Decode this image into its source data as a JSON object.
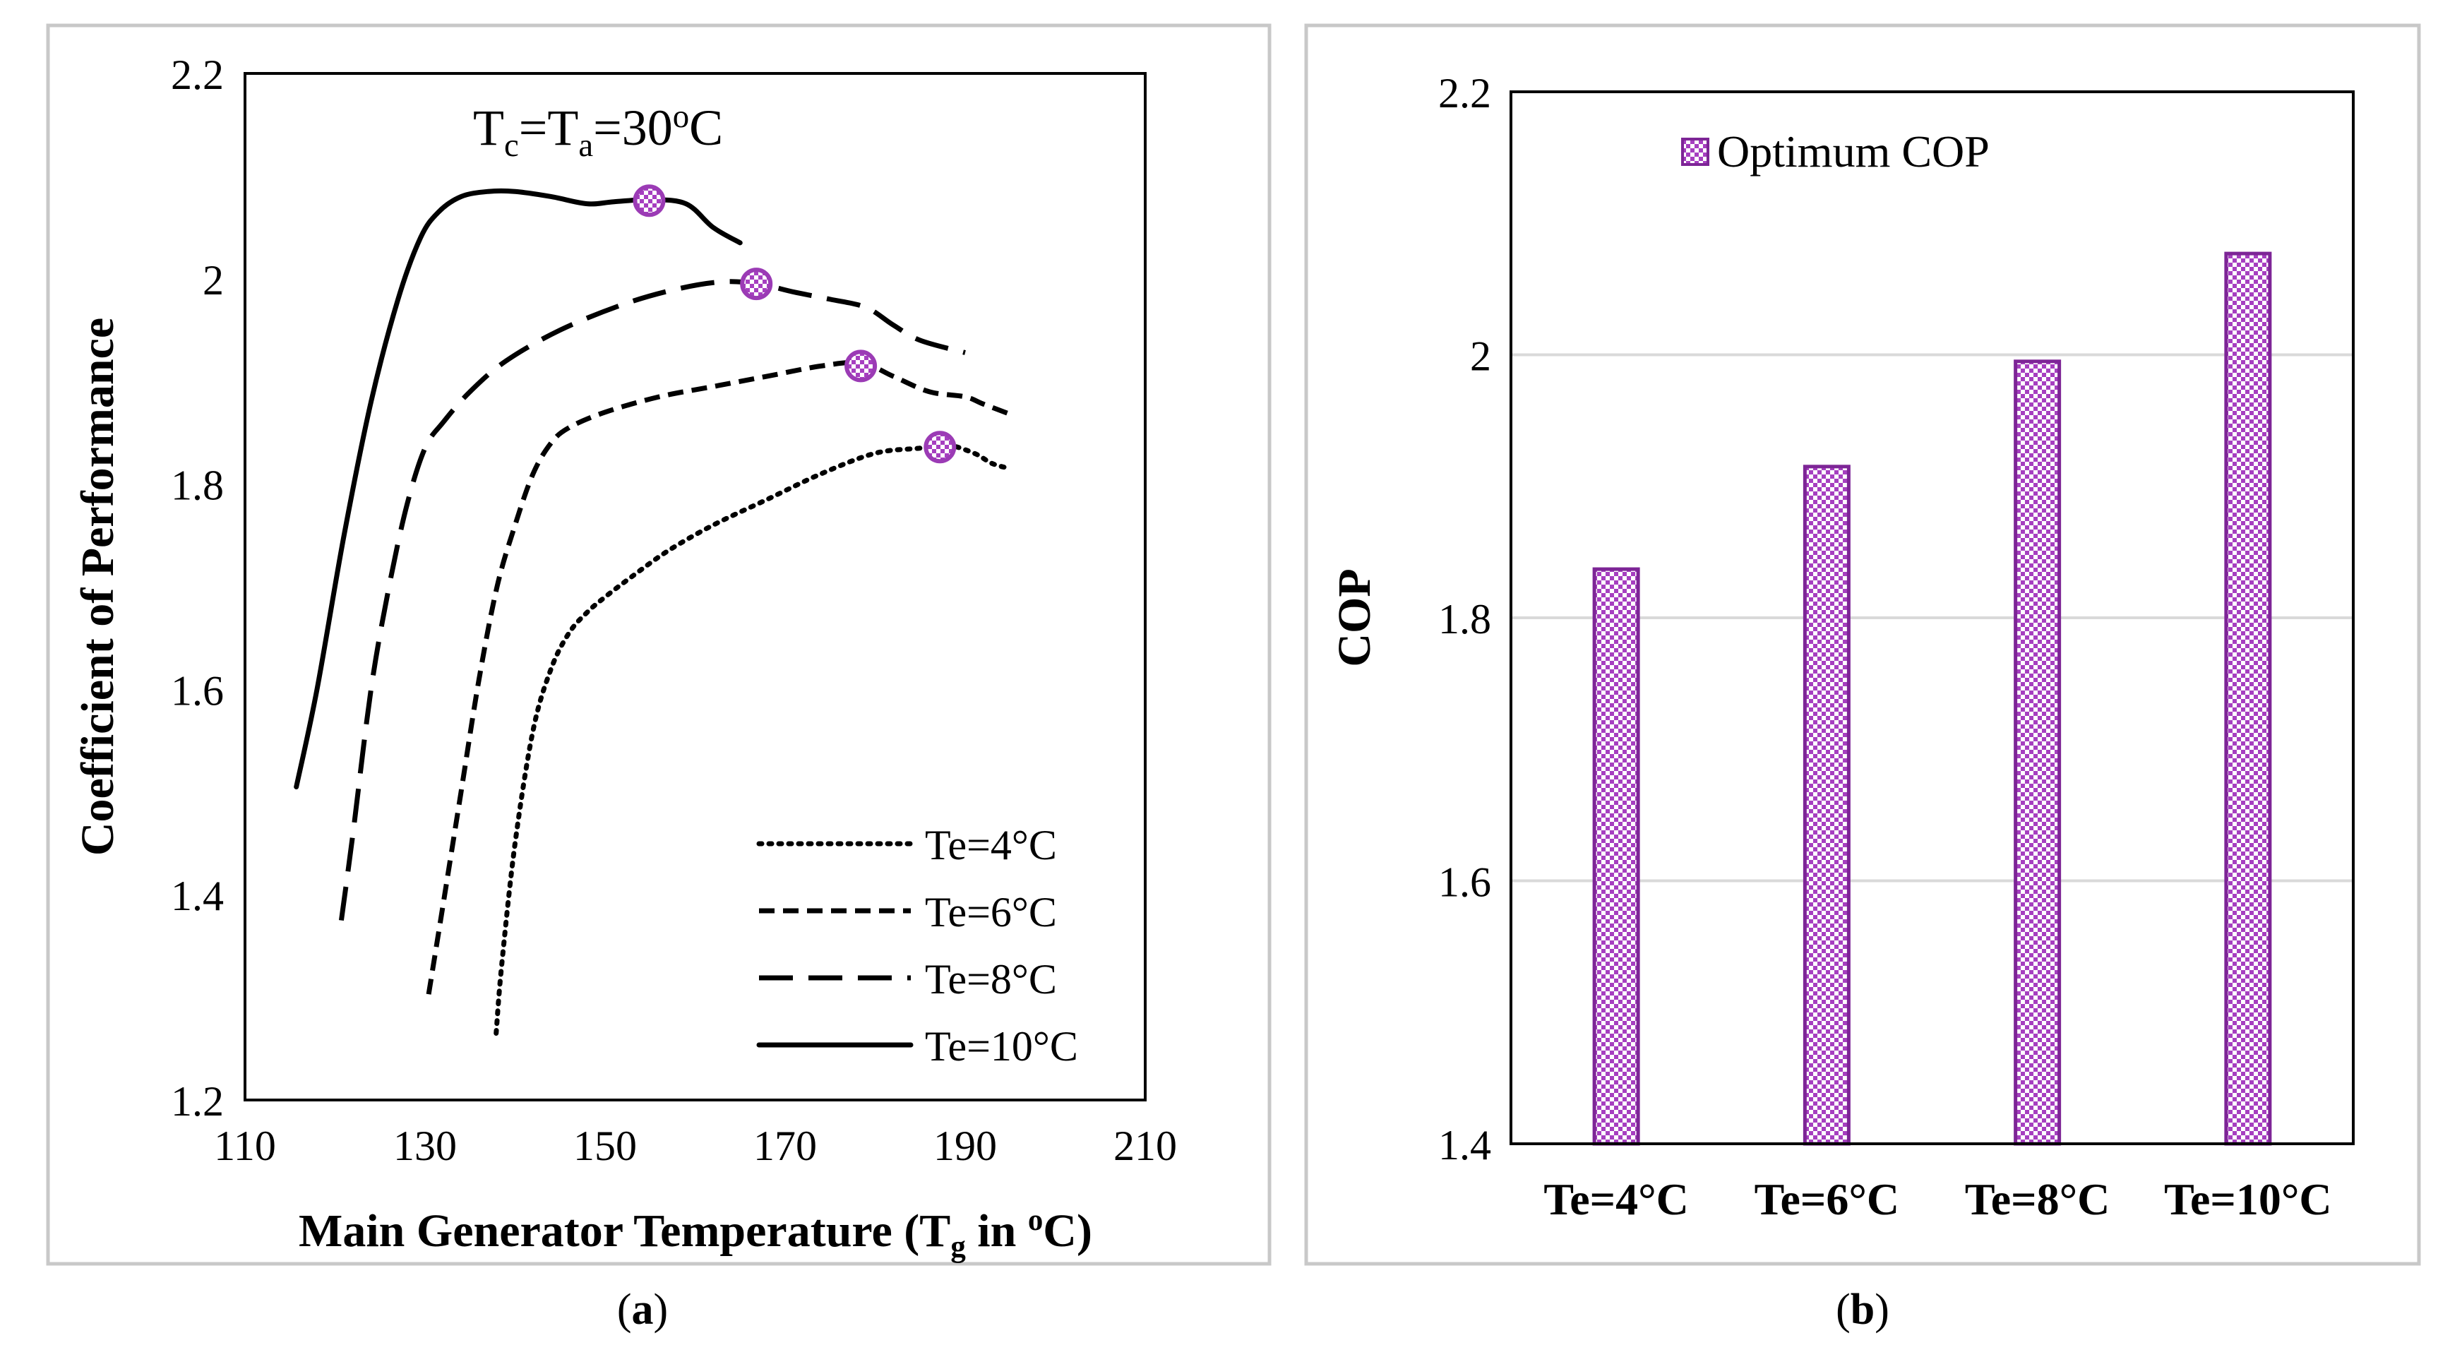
{
  "panels": [
    {
      "caption_open": "(",
      "caption_letter": "a",
      "caption_close": ")"
    },
    {
      "caption_open": "(",
      "caption_letter": "b",
      "caption_close": ")"
    }
  ],
  "colors": {
    "marker": "#9b3bb5",
    "bar_fill": "#a63fc0",
    "bar_stroke": "#7d2596",
    "frame": "#c8c8c8",
    "grid": "#d9d9d9"
  },
  "chart_data": [
    {
      "type": "line",
      "annotation": "Tc=Ta=30oC",
      "ylabel": "Coefficient of Performance",
      "xlabel": "Main Generator Temperature (Tg in oC)",
      "xlim": [
        110,
        210
      ],
      "ylim": [
        1.2,
        2.2
      ],
      "xticks": [
        110,
        130,
        150,
        170,
        190,
        210
      ],
      "yticks": [
        1.2,
        1.4,
        1.6,
        1.8,
        2,
        2.2
      ],
      "ytick_labels": [
        "1.2",
        "1.4",
        "1.6",
        "1.8",
        "2",
        "2.2"
      ],
      "grid": false,
      "legend_position": "bottom-right",
      "series": [
        {
          "name": "Te=4°C",
          "dash": "dotted",
          "x": [
            137.9,
            138.5,
            140,
            142,
            144,
            146,
            148,
            150,
            153,
            157,
            162,
            168,
            174,
            180,
            185,
            188,
            191,
            193,
            195
          ],
          "y": [
            1.265,
            1.33,
            1.45,
            1.56,
            1.62,
            1.655,
            1.675,
            1.69,
            1.71,
            1.735,
            1.76,
            1.785,
            1.81,
            1.83,
            1.835,
            1.838,
            1.83,
            1.82,
            1.815
          ],
          "optimum": [
            187.2,
            1.836
          ]
        },
        {
          "name": "Te=6°C",
          "dash": "short-dash",
          "x": [
            130.4,
            132,
            134,
            136,
            138,
            140,
            142,
            144,
            146,
            150,
            156,
            162,
            168,
            174,
            178.5,
            182,
            186,
            190,
            192,
            195
          ],
          "y": [
            1.303,
            1.39,
            1.5,
            1.61,
            1.7,
            1.76,
            1.81,
            1.84,
            1.855,
            1.87,
            1.885,
            1.895,
            1.905,
            1.915,
            1.918,
            1.905,
            1.89,
            1.885,
            1.878,
            1.868
          ],
          "optimum": [
            178.4,
            1.915
          ]
        },
        {
          "name": "Te=8°C",
          "dash": "long-dash",
          "x": [
            120.7,
            122,
            124,
            126,
            128,
            130,
            132,
            135,
            139,
            145,
            152,
            158,
            163,
            167,
            171,
            175,
            179,
            182,
            185,
            190
          ],
          "y": [
            1.375,
            1.46,
            1.6,
            1.7,
            1.78,
            1.835,
            1.86,
            1.89,
            1.92,
            1.95,
            1.975,
            1.99,
            1.997,
            1.995,
            1.987,
            1.98,
            1.972,
            1.955,
            1.94,
            1.928
          ],
          "optimum": [
            166.8,
            1.995
          ]
        },
        {
          "name": "Te=10°C",
          "dash": "solid",
          "x": [
            115.7,
            118,
            121,
            124,
            127,
            129.5,
            131.5,
            134,
            137,
            140,
            144,
            148,
            151,
            155,
            159,
            162,
            165
          ],
          "y": [
            1.505,
            1.6,
            1.75,
            1.88,
            1.98,
            2.04,
            2.065,
            2.08,
            2.085,
            2.085,
            2.08,
            2.073,
            2.075,
            2.077,
            2.073,
            2.05,
            2.035
          ],
          "optimum": [
            154.9,
            2.076
          ]
        }
      ]
    },
    {
      "type": "bar",
      "ylabel": "COP",
      "xlabel": "",
      "categories": [
        "Te=4°C",
        "Te=6°C",
        "Te=8°C",
        "Te=10°C"
      ],
      "ylim": [
        1.4,
        2.2
      ],
      "yticks": [
        1.4,
        1.6,
        1.8,
        2,
        2.2
      ],
      "ytick_labels": [
        "1.4",
        "1.6",
        "1.8",
        "2",
        "2.2"
      ],
      "grid": true,
      "legend_position": "top-left",
      "series": [
        {
          "name": "Optimum COP",
          "values": [
            1.837,
            1.915,
            1.995,
            2.077
          ]
        }
      ]
    }
  ]
}
